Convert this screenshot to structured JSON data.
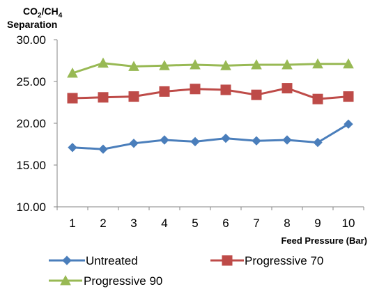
{
  "chart_data": {
    "type": "line",
    "ylabel_line1_main": "CO",
    "ylabel_line1_sub1": "2",
    "ylabel_line1_mid": "/CH",
    "ylabel_line1_sub2": "4",
    "ylabel_line2": "Separation",
    "xlabel": "Feed Pressure (Bar)",
    "ylim": [
      10,
      30
    ],
    "yticks": [
      "30.00",
      "25.00",
      "20.00",
      "15.00",
      "10.00"
    ],
    "ytick_values": [
      30,
      25,
      20,
      15,
      10
    ],
    "categories": [
      "1",
      "2",
      "3",
      "4",
      "5",
      "6",
      "7",
      "8",
      "9",
      "10"
    ],
    "grid": false,
    "legend_position": "bottom",
    "series": [
      {
        "name": "Untreated",
        "color": "#4A7EBB",
        "marker": "diamond",
        "values": [
          17.1,
          16.9,
          17.6,
          18.0,
          17.8,
          18.2,
          17.9,
          18.0,
          17.7,
          19.9
        ]
      },
      {
        "name": "Progressive 70",
        "color": "#BE4B48",
        "marker": "square",
        "values": [
          23.0,
          23.1,
          23.2,
          23.8,
          24.1,
          24.0,
          23.4,
          24.2,
          22.9,
          23.2
        ]
      },
      {
        "name": "Progressive 90",
        "color": "#98B954",
        "marker": "triangle",
        "values": [
          26.0,
          27.2,
          26.8,
          26.9,
          27.0,
          26.9,
          27.0,
          27.0,
          27.1,
          27.1
        ]
      }
    ]
  }
}
